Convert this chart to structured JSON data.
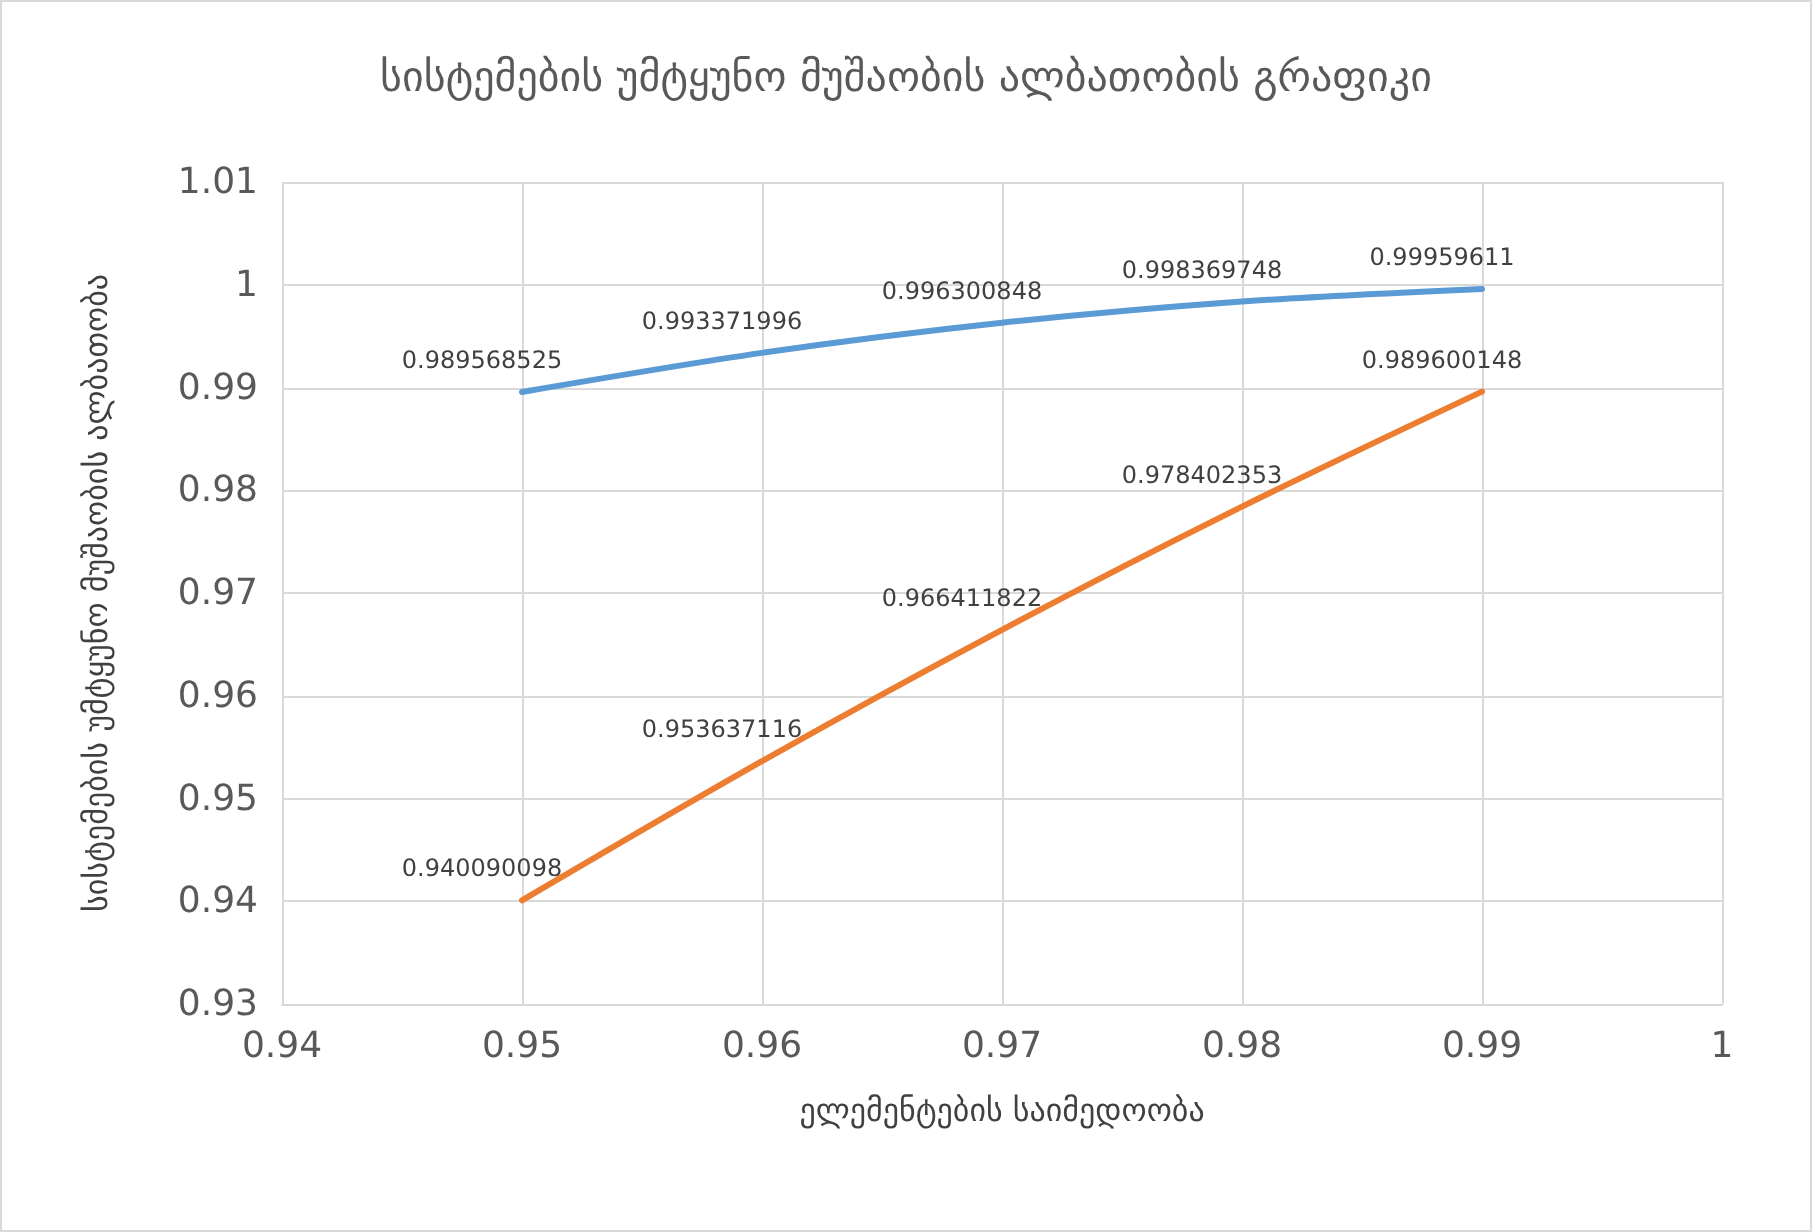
{
  "chart_data": {
    "type": "line",
    "title": "სისტემების უმტყუნო მუშაობის ალბათობის გრაფიკი",
    "xlabel": "ელემენტების საიმედოობა",
    "ylabel": "სისტემების უმტყუნო მუშაობის ალბათობა",
    "x": [
      0.95,
      0.96,
      0.97,
      0.98,
      0.99
    ],
    "series": [
      {
        "color": "#5b9bd5",
        "values": [
          0.989568525,
          0.993371996,
          0.996300848,
          0.998369748,
          0.99959611
        ]
      },
      {
        "color": "#ed7d31",
        "values": [
          0.940090098,
          0.953637116,
          0.966411822,
          0.978402353,
          0.989600148
        ]
      }
    ],
    "xlim": [
      0.94,
      1
    ],
    "xticks": [
      0.94,
      0.95,
      0.96,
      0.97,
      0.98,
      0.99,
      1
    ],
    "ylim": [
      0.93,
      1.01
    ],
    "yticks": [
      0.93,
      0.94,
      0.95,
      0.96,
      0.97,
      0.98,
      0.99,
      1,
      1.01
    ],
    "grid": true,
    "data_labels": true,
    "marker": "none",
    "line_style": "solid"
  }
}
